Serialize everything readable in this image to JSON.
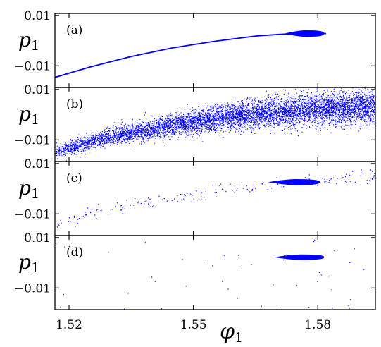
{
  "chart_data": {
    "type": "scatter",
    "xlabel": {
      "symbol": "φ",
      "subscript": "1"
    },
    "ylabel": {
      "symbol": "p",
      "subscript": "1"
    },
    "xlim": [
      1.5166,
      1.5939
    ],
    "ylim": [
      -0.0186,
      0.0108
    ],
    "x_ticks": [
      {
        "value": 1.52,
        "label": "1.52"
      },
      {
        "value": 1.55,
        "label": "1.55"
      },
      {
        "value": 1.58,
        "label": "1.58"
      }
    ],
    "y_ticks": [
      {
        "value": 0.01,
        "label": "0.01"
      },
      {
        "value": -0.01,
        "label": "−0.01"
      }
    ],
    "color": "#0000ff",
    "panels": [
      {
        "tag": "(a)",
        "curve": [
          [
            1.5166,
            -0.0146
          ],
          [
            1.525,
            -0.0105
          ],
          [
            1.535,
            -0.0063
          ],
          [
            1.545,
            -0.0029
          ],
          [
            1.555,
            -0.0003
          ],
          [
            1.565,
            0.0018
          ],
          [
            1.571,
            0.0025
          ],
          [
            1.575,
            0.0028
          ],
          [
            1.58,
            0.0029
          ],
          [
            1.582,
            0.0028
          ]
        ],
        "blob": {
          "x_range": [
            1.572,
            1.5815
          ],
          "center_y": 0.0028,
          "half_height": 0.0013
        }
      },
      {
        "tag": "(b)",
        "curve": [
          [
            1.5166,
            -0.0147
          ],
          [
            1.53,
            -0.0085
          ],
          [
            1.545,
            -0.0042
          ],
          [
            1.56,
            -0.0005
          ],
          [
            1.575,
            0.0018
          ],
          [
            1.59,
            0.0032
          ],
          [
            1.594,
            0.0034
          ]
        ],
        "spread": [
          [
            1.5166,
            0.003
          ],
          [
            1.545,
            0.0052
          ],
          [
            1.575,
            0.0072
          ],
          [
            1.594,
            0.008
          ]
        ],
        "count": 7500
      },
      {
        "tag": "(c)",
        "blob": {
          "x_range": [
            1.568,
            1.5805
          ],
          "center_y": 0.0026,
          "half_height": 0.0012
        },
        "scatter_line": [
          [
            1.519,
            -0.0145
          ],
          [
            1.525,
            -0.0095
          ],
          [
            1.54,
            -0.0047
          ],
          [
            1.555,
            -0.0015
          ],
          [
            1.565,
            0.0012
          ],
          [
            1.575,
            0.0022
          ],
          [
            1.59,
            0.0055
          ]
        ],
        "sparse_count": 190
      },
      {
        "tag": "(d)",
        "blob": {
          "x_range": [
            1.5695,
            1.5815
          ],
          "center_y": 0.0022,
          "half_height": 0.0011
        },
        "sparse_count": 45
      }
    ]
  }
}
